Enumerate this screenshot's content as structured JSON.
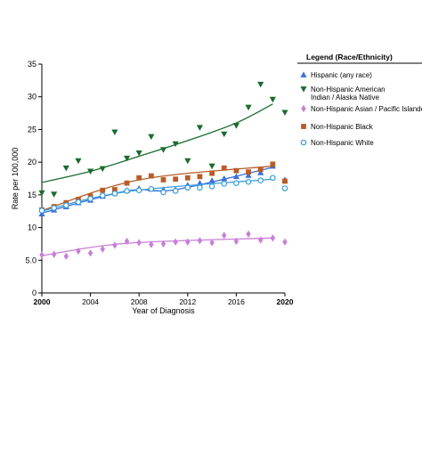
{
  "chart_data": {
    "type": "scatter",
    "xlabel": "Year of Diagnosis",
    "ylabel": "Rate per 100,000",
    "xlim": [
      2000,
      2020
    ],
    "ylim": [
      0,
      35
    ],
    "x_ticks": [
      2000,
      2004,
      2008,
      2012,
      2016,
      2020
    ],
    "x_tick_labels": [
      "2000",
      "2004",
      "2008",
      "2012",
      "2016",
      "2020"
    ],
    "y_ticks": [
      0,
      5,
      10,
      15,
      20,
      25,
      30,
      35
    ],
    "y_tick_labels": [
      "0",
      "5.0",
      "10",
      "15",
      "20",
      "25",
      "30",
      "35"
    ],
    "legend": {
      "title": "Legend (Race/Ethnicity)",
      "placement": "right"
    },
    "x": [
      2000,
      2001,
      2002,
      2003,
      2004,
      2005,
      2006,
      2007,
      2008,
      2009,
      2010,
      2011,
      2012,
      2013,
      2014,
      2015,
      2016,
      2017,
      2018,
      2019,
      2020
    ],
    "series": [
      {
        "name": "Hispanic (any race)",
        "marker": "triangle-up",
        "color": "#3a6fd8",
        "values": [
          12.1,
          12.7,
          13.2,
          13.8,
          14.2,
          14.8,
          15.3,
          15.7,
          16.0,
          15.9,
          15.8,
          15.8,
          16.5,
          16.8,
          17.2,
          17.5,
          17.8,
          18.0,
          18.4,
          19.4,
          17.3
        ],
        "trend": [
          [
            2000,
            12.2
          ],
          [
            2007,
            15.6
          ],
          [
            2011,
            15.8
          ],
          [
            2019,
            19.2
          ]
        ]
      },
      {
        "name": "Non-Hispanic American Indian / Alaska Native",
        "marker": "triangle-down",
        "color": "#1a6b2e",
        "values": [
          15.3,
          15.1,
          19.1,
          20.2,
          18.6,
          19.0,
          24.6,
          20.6,
          21.4,
          23.9,
          21.9,
          22.8,
          20.2,
          25.3,
          19.4,
          24.3,
          25.6,
          28.4,
          31.9,
          29.6,
          27.6
        ],
        "trend": [
          [
            2000,
            16.9
          ],
          [
            2004,
            18.6
          ],
          [
            2008,
            20.9
          ],
          [
            2012,
            23.3
          ],
          [
            2016,
            26.0
          ],
          [
            2019,
            28.9
          ]
        ]
      },
      {
        "name": "Non-Hispanic Asian / Pacific Islander",
        "marker": "diamond",
        "color": "#c87fd8",
        "values": [
          5.8,
          5.9,
          5.6,
          6.4,
          6.1,
          6.7,
          7.3,
          7.9,
          7.7,
          7.4,
          7.5,
          7.8,
          7.8,
          8.0,
          7.7,
          8.8,
          7.9,
          9.0,
          8.1,
          8.4,
          7.8
        ],
        "trend": [
          [
            2000,
            5.7
          ],
          [
            2007,
            7.6
          ],
          [
            2019,
            8.4
          ]
        ]
      },
      {
        "name": "Non-Hispanic Black",
        "marker": "square",
        "color": "#b85c28",
        "values": [
          12.7,
          13.2,
          13.8,
          14.3,
          14.8,
          15.7,
          15.8,
          16.8,
          17.6,
          17.9,
          17.3,
          17.4,
          17.6,
          17.8,
          18.3,
          19.1,
          18.7,
          18.5,
          18.9,
          19.7,
          17.1
        ],
        "trend": [
          [
            2000,
            12.6
          ],
          [
            2008,
            17.3
          ],
          [
            2019,
            19.4
          ]
        ]
      },
      {
        "name": "Non-Hispanic White",
        "marker": "circle-open",
        "color": "#3a9fd8",
        "values": [
          12.6,
          13.0,
          13.4,
          13.9,
          14.4,
          14.9,
          15.2,
          15.6,
          15.7,
          15.9,
          15.4,
          15.6,
          16.1,
          16.1,
          16.3,
          16.7,
          16.8,
          17.0,
          17.2,
          17.6,
          16.0
        ],
        "trend": [
          [
            2000,
            12.5
          ],
          [
            2007,
            15.5
          ],
          [
            2019,
            17.4
          ]
        ]
      }
    ]
  }
}
